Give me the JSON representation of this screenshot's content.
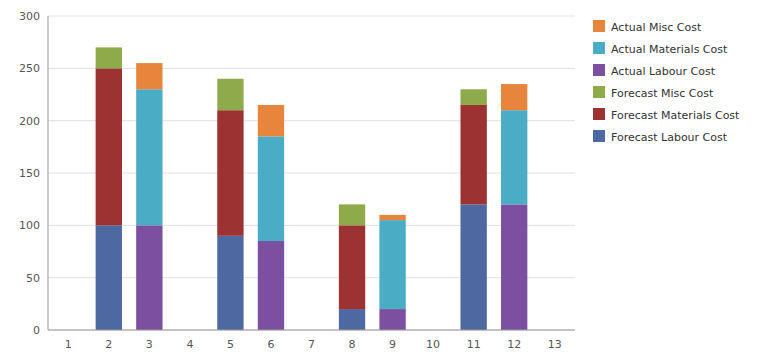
{
  "chart_data": {
    "type": "bar",
    "stacked": true,
    "grid": true,
    "legend": "right",
    "categories": [
      "1",
      "2",
      "3",
      "4",
      "5",
      "6",
      "7",
      "8",
      "9",
      "10",
      "11",
      "12",
      "13"
    ],
    "ylim": [
      0,
      300
    ],
    "yticks": [
      0,
      50,
      100,
      150,
      200,
      250,
      300
    ],
    "series": [
      {
        "name": "Forecast Labour Cost",
        "color": "#4e69a2",
        "values": [
          null,
          100,
          null,
          null,
          90,
          null,
          null,
          20,
          null,
          null,
          120,
          null,
          null
        ]
      },
      {
        "name": "Forecast Materials Cost",
        "color": "#9c3232",
        "values": [
          null,
          150,
          null,
          null,
          120,
          null,
          null,
          80,
          null,
          null,
          95,
          null,
          null
        ]
      },
      {
        "name": "Forecast Misc Cost",
        "color": "#8faa4b",
        "values": [
          null,
          20,
          null,
          null,
          30,
          null,
          null,
          20,
          null,
          null,
          15,
          null,
          null
        ]
      },
      {
        "name": "Actual Labour Cost",
        "color": "#7d4fa0",
        "values": [
          null,
          null,
          100,
          null,
          null,
          85,
          null,
          null,
          20,
          null,
          null,
          120,
          null
        ]
      },
      {
        "name": "Actual Materials Cost",
        "color": "#4bacc6",
        "values": [
          null,
          null,
          130,
          null,
          null,
          100,
          null,
          null,
          85,
          null,
          null,
          90,
          null
        ]
      },
      {
        "name": "Actual Misc Cost",
        "color": "#e8853d",
        "values": [
          null,
          null,
          25,
          null,
          null,
          30,
          null,
          null,
          5,
          null,
          null,
          25,
          null
        ]
      }
    ]
  }
}
